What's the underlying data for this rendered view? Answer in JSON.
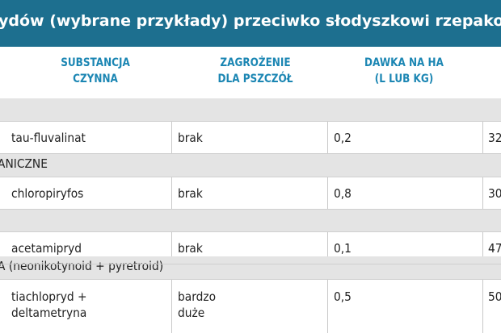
{
  "title": "ydów (wybrane przykłady) przeciwko słodyszkowi rzepako",
  "columns": {
    "substance": [
      "SUBSTANCJA",
      "CZYNNA"
    ],
    "danger": [
      "ZAGROŻENIE",
      "DLA PSZCZÓŁ"
    ],
    "dose": [
      "DAWKA NA HA",
      "(L LUB KG)"
    ]
  },
  "sections": {
    "s2": "ANICZNE",
    "s4": "A (neonikotynoid + pyretroid)"
  },
  "rows": [
    {
      "substance": [
        "tau-fluvalinat"
      ],
      "danger": [
        "brak"
      ],
      "dose": "0,2",
      "last": "32"
    },
    {
      "substance": [
        "chloropiryfos"
      ],
      "danger": [
        "brak"
      ],
      "dose": "0,8",
      "last": "30"
    },
    {
      "substance": [
        "acetamipryd"
      ],
      "danger": [
        "brak"
      ],
      "dose": "0,1",
      "last": "47"
    },
    {
      "substance": [
        "tiachlopryd +",
        "deltametryna"
      ],
      "danger": [
        "bardzo",
        "duże"
      ],
      "dose": "0,5",
      "last": "50"
    }
  ]
}
